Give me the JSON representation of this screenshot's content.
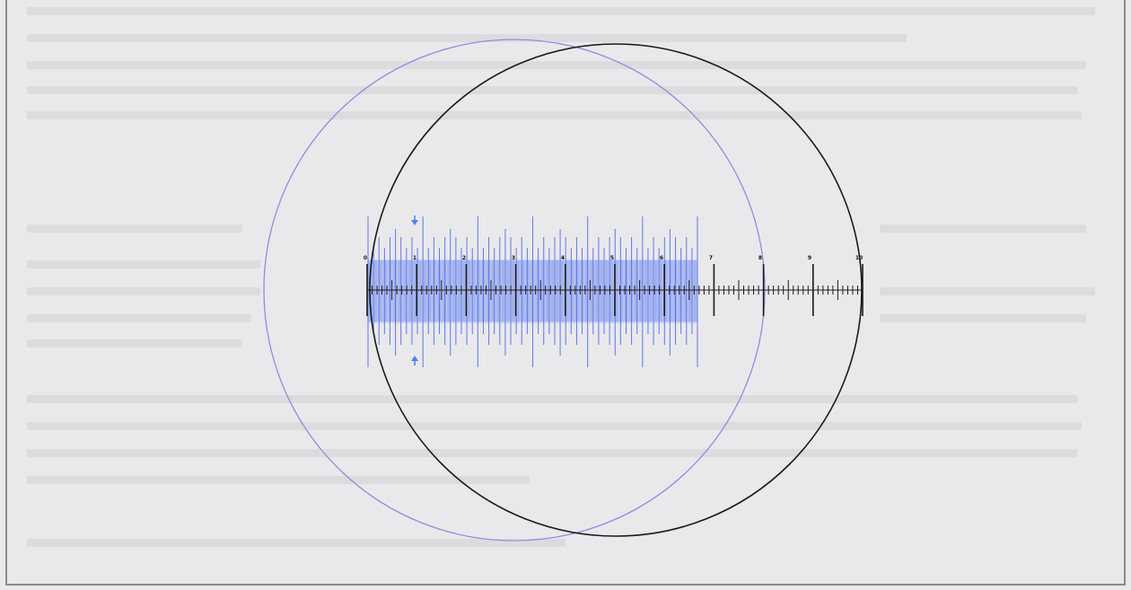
{
  "figure": {
    "scale_labels": [
      "0",
      "1",
      "2",
      "3",
      "4",
      "5",
      "6",
      "7",
      "8",
      "9",
      "10"
    ],
    "colors": {
      "background": "#e9e9eb",
      "ocular_circle": "#1a1a1a",
      "overlay_circle": "#8e8ee0",
      "overlay_scale": "#5f78e8",
      "overlay_fill": "#c2cdf2",
      "ocular_scale": "#1a1a1a",
      "arrow_marker": "#4f82e0"
    },
    "icons": [
      "arrow-down-icon",
      "arrow-up-icon"
    ]
  }
}
